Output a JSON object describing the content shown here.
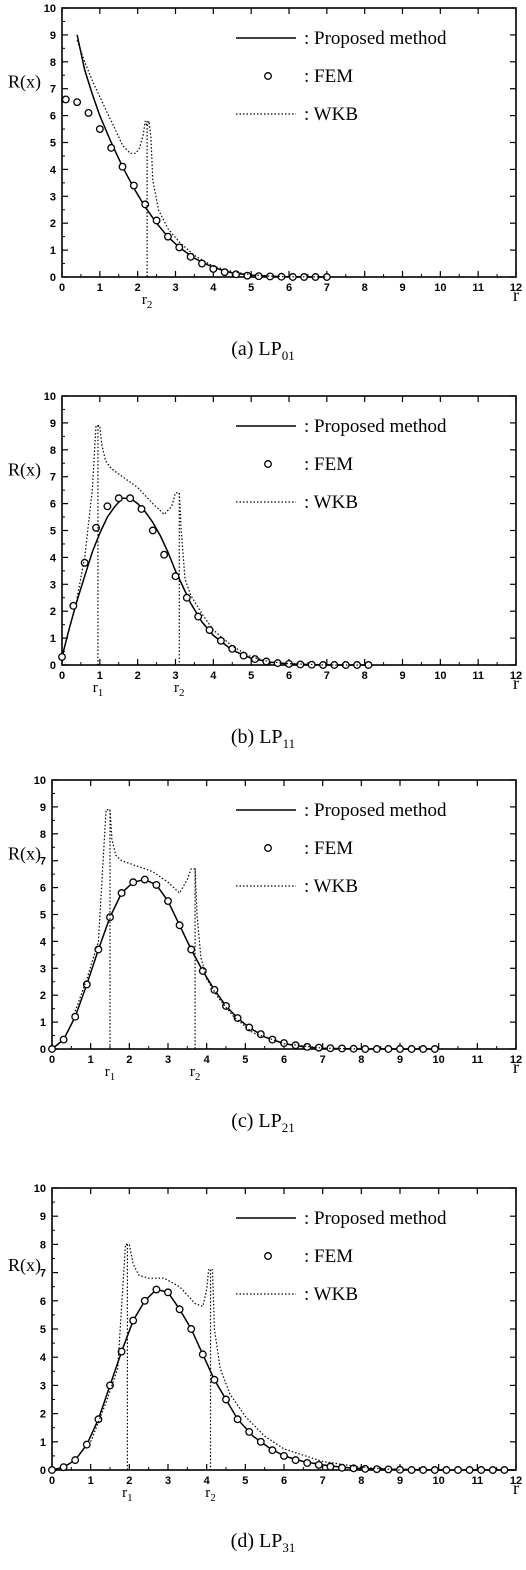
{
  "chart_data": [
    {
      "type": "line",
      "panel_caption": "(a)  LP",
      "panel_caption_sub": "01",
      "xlabel": "r",
      "ylabel": "R(x)",
      "xlim": [
        0,
        12
      ],
      "ylim": [
        0,
        10
      ],
      "xticks": [
        "0",
        "1",
        "2",
        "3",
        "4",
        "5",
        "6",
        "7",
        "8",
        "9",
        "10",
        "11",
        "12"
      ],
      "yticks": [
        "0",
        "1",
        "2",
        "3",
        "4",
        "5",
        "6",
        "7",
        "8",
        "9",
        "10"
      ],
      "legend": [
        "Proposed method",
        "FEM",
        "WKB"
      ],
      "legend_position": "top-right",
      "turning_points": [
        {
          "label": "r",
          "sub": "2",
          "x": 2.25
        }
      ],
      "series": [
        {
          "name": "Proposed method",
          "style": "solid",
          "x": [
            0.4,
            0.6,
            0.8,
            1.0,
            1.3,
            1.6,
            1.9,
            2.2,
            2.5,
            2.8,
            3.1,
            3.5,
            4.0,
            4.5,
            5.0,
            5.5,
            6.0,
            7.0
          ],
          "y": [
            9.0,
            7.7,
            6.8,
            6.0,
            5.0,
            4.1,
            3.3,
            2.6,
            2.0,
            1.5,
            1.1,
            0.7,
            0.35,
            0.15,
            0.07,
            0.03,
            0.01,
            0.0
          ]
        },
        {
          "name": "FEM",
          "style": "circle",
          "x": [
            0.1,
            0.4,
            0.7,
            1.0,
            1.3,
            1.6,
            1.9,
            2.2,
            2.5,
            2.8,
            3.1,
            3.4,
            3.7,
            4.0,
            4.3,
            4.6,
            4.9,
            5.2,
            5.5,
            5.8,
            6.1,
            6.4,
            6.7,
            7.0
          ],
          "y": [
            6.6,
            6.5,
            6.1,
            5.5,
            4.8,
            4.1,
            3.4,
            2.7,
            2.1,
            1.5,
            1.1,
            0.75,
            0.5,
            0.3,
            0.18,
            0.1,
            0.05,
            0.03,
            0.02,
            0.01,
            0.0,
            0.0,
            0.0,
            0.0
          ]
        },
        {
          "name": "WKB",
          "style": "dotted",
          "x": [
            0.4,
            0.6,
            0.8,
            1.0,
            1.2,
            1.4,
            1.6,
            1.8,
            1.95,
            2.05,
            2.15,
            2.2,
            2.25,
            2.3,
            2.35,
            2.4,
            2.55,
            2.8,
            3.1,
            3.5,
            4.0,
            4.5,
            5.0,
            5.5,
            6.0,
            7.0
          ],
          "y": [
            8.8,
            8.0,
            7.3,
            6.7,
            6.1,
            5.5,
            4.9,
            4.6,
            4.6,
            4.8,
            5.3,
            5.8,
            5.6,
            5.8,
            5.2,
            3.6,
            2.5,
            1.8,
            1.3,
            0.8,
            0.4,
            0.2,
            0.08,
            0.03,
            0.01,
            0.0
          ],
          "drop_to_zero_at": 2.25
        }
      ]
    },
    {
      "type": "line",
      "panel_caption": "(b)  LP",
      "panel_caption_sub": "11",
      "xlabel": "r",
      "ylabel": "R(x)",
      "xlim": [
        0,
        12
      ],
      "ylim": [
        0,
        10
      ],
      "xticks": [
        "0",
        "1",
        "2",
        "3",
        "4",
        "5",
        "6",
        "7",
        "8",
        "9",
        "10",
        "11",
        "12"
      ],
      "yticks": [
        "0",
        "1",
        "2",
        "3",
        "4",
        "5",
        "6",
        "7",
        "8",
        "9",
        "10"
      ],
      "legend": [
        "Proposed method",
        "FEM",
        "WKB"
      ],
      "legend_position": "top-right",
      "turning_points": [
        {
          "label": "r",
          "sub": "1",
          "x": 0.95
        },
        {
          "label": "r",
          "sub": "2",
          "x": 3.1
        }
      ],
      "series": [
        {
          "name": "Proposed method",
          "style": "solid",
          "x": [
            0.0,
            0.2,
            0.4,
            0.6,
            0.8,
            1.0,
            1.2,
            1.4,
            1.6,
            1.8,
            2.0,
            2.2,
            2.4,
            2.6,
            2.8,
            3.0,
            3.2,
            3.4,
            3.7,
            4.0,
            4.5,
            5.0,
            5.5,
            6.0,
            6.5,
            7.0,
            8.0
          ],
          "y": [
            0.3,
            1.4,
            2.4,
            3.3,
            4.2,
            4.9,
            5.5,
            5.9,
            6.2,
            6.2,
            6.0,
            5.7,
            5.3,
            4.8,
            4.2,
            3.5,
            2.9,
            2.3,
            1.6,
            1.1,
            0.55,
            0.25,
            0.1,
            0.04,
            0.02,
            0.0,
            0.0
          ]
        },
        {
          "name": "FEM",
          "style": "circle",
          "x": [
            0.0,
            0.3,
            0.6,
            0.9,
            1.2,
            1.5,
            1.8,
            2.1,
            2.4,
            2.7,
            3.0,
            3.3,
            3.6,
            3.9,
            4.2,
            4.5,
            4.8,
            5.1,
            5.4,
            5.7,
            6.0,
            6.3,
            6.6,
            6.9,
            7.2,
            7.5,
            7.8,
            8.1
          ],
          "y": [
            0.3,
            2.2,
            3.8,
            5.1,
            5.9,
            6.2,
            6.2,
            5.8,
            5.0,
            4.1,
            3.3,
            2.5,
            1.8,
            1.3,
            0.9,
            0.6,
            0.35,
            0.22,
            0.13,
            0.07,
            0.04,
            0.02,
            0.01,
            0.0,
            0.0,
            0.0,
            0.0,
            0.0
          ]
        },
        {
          "name": "WKB",
          "style": "dotted",
          "x": [
            0.4,
            0.6,
            0.8,
            0.9,
            0.95,
            1.0,
            1.05,
            1.15,
            1.3,
            1.6,
            2.0,
            2.4,
            2.7,
            2.9,
            3.0,
            3.05,
            3.1,
            3.15,
            3.25,
            3.4,
            3.7,
            4.0,
            4.5,
            5.0,
            5.5,
            6.0,
            7.0,
            8.0
          ],
          "y": [
            2.5,
            4.0,
            6.5,
            8.9,
            8.9,
            8.9,
            8.2,
            7.6,
            7.3,
            7.0,
            6.6,
            6.0,
            5.6,
            5.9,
            6.4,
            6.4,
            6.4,
            5.0,
            3.2,
            2.6,
            1.9,
            1.3,
            0.7,
            0.3,
            0.12,
            0.05,
            0.0,
            0.0
          ],
          "drop_to_zero_at": [
            0.95,
            3.1
          ]
        }
      ]
    },
    {
      "type": "line",
      "panel_caption": "(c)  LP",
      "panel_caption_sub": "21",
      "xlabel": "r",
      "ylabel": "R(x)",
      "xlim": [
        0,
        12
      ],
      "ylim": [
        0,
        10
      ],
      "xticks": [
        "0",
        "1",
        "2",
        "3",
        "4",
        "5",
        "6",
        "7",
        "8",
        "9",
        "10",
        "11",
        "12"
      ],
      "yticks": [
        "0",
        "1",
        "2",
        "3",
        "4",
        "5",
        "6",
        "7",
        "8",
        "9",
        "10"
      ],
      "legend": [
        "Proposed method",
        "FEM",
        "WKB"
      ],
      "legend_position": "top-right",
      "turning_points": [
        {
          "label": "r",
          "sub": "1",
          "x": 1.5
        },
        {
          "label": "r",
          "sub": "2",
          "x": 3.7
        }
      ],
      "series": [
        {
          "name": "Proposed method",
          "style": "solid",
          "x": [
            0.0,
            0.3,
            0.6,
            0.9,
            1.2,
            1.5,
            1.8,
            2.1,
            2.4,
            2.7,
            3.0,
            3.3,
            3.6,
            3.9,
            4.2,
            4.5,
            4.8,
            5.1,
            5.5,
            6.0,
            6.5,
            7.0,
            8.0,
            10.0
          ],
          "y": [
            0.0,
            0.35,
            1.2,
            2.4,
            3.7,
            4.9,
            5.8,
            6.2,
            6.3,
            6.1,
            5.5,
            4.6,
            3.7,
            2.9,
            2.2,
            1.6,
            1.15,
            0.8,
            0.45,
            0.2,
            0.08,
            0.03,
            0.0,
            0.0
          ]
        },
        {
          "name": "FEM",
          "style": "circle",
          "x": [
            0.0,
            0.3,
            0.6,
            0.9,
            1.2,
            1.5,
            1.8,
            2.1,
            2.4,
            2.7,
            3.0,
            3.3,
            3.6,
            3.9,
            4.2,
            4.5,
            4.8,
            5.1,
            5.4,
            5.7,
            6.0,
            6.3,
            6.6,
            6.9,
            7.2,
            7.5,
            7.8,
            8.1,
            8.4,
            8.7,
            9.0,
            9.3,
            9.6,
            9.9
          ],
          "y": [
            0.0,
            0.35,
            1.2,
            2.4,
            3.7,
            4.9,
            5.8,
            6.2,
            6.3,
            6.1,
            5.5,
            4.6,
            3.7,
            2.9,
            2.2,
            1.6,
            1.15,
            0.8,
            0.55,
            0.35,
            0.22,
            0.14,
            0.08,
            0.05,
            0.03,
            0.02,
            0.01,
            0.0,
            0.0,
            0.0,
            0.0,
            0.0,
            0.0,
            0.0
          ]
        },
        {
          "name": "WKB",
          "style": "dotted",
          "x": [
            0.6,
            0.9,
            1.2,
            1.4,
            1.45,
            1.5,
            1.55,
            1.65,
            1.8,
            2.2,
            2.6,
            3.0,
            3.3,
            3.5,
            3.6,
            3.65,
            3.7,
            3.75,
            3.85,
            4.0,
            4.3,
            4.7,
            5.2,
            6.0,
            7.0,
            8.0
          ],
          "y": [
            1.4,
            2.6,
            4.0,
            8.9,
            8.9,
            8.9,
            7.8,
            7.2,
            7.0,
            6.8,
            6.6,
            6.2,
            5.8,
            6.3,
            6.7,
            6.7,
            6.7,
            5.0,
            3.4,
            2.6,
            1.9,
            1.2,
            0.6,
            0.2,
            0.03,
            0.0
          ],
          "drop_to_zero_at": [
            1.5,
            3.7
          ]
        }
      ]
    },
    {
      "type": "line",
      "panel_caption": "(d)  LP",
      "panel_caption_sub": "31",
      "xlabel": "r",
      "ylabel": "R(x)",
      "xlim": [
        0,
        12
      ],
      "ylim": [
        0,
        10
      ],
      "xticks": [
        "0",
        "1",
        "2",
        "3",
        "4",
        "5",
        "6",
        "7",
        "8",
        "9",
        "10",
        "11",
        "12"
      ],
      "yticks": [
        "0",
        "1",
        "2",
        "3",
        "4",
        "5",
        "6",
        "7",
        "8",
        "9",
        "10"
      ],
      "legend": [
        "Proposed method",
        "FEM",
        "WKB"
      ],
      "legend_position": "top-right",
      "turning_points": [
        {
          "label": "r",
          "sub": "1",
          "x": 1.95
        },
        {
          "label": "r",
          "sub": "2",
          "x": 4.1
        }
      ],
      "series": [
        {
          "name": "Proposed method",
          "style": "solid",
          "x": [
            0.0,
            0.3,
            0.6,
            0.9,
            1.2,
            1.5,
            1.8,
            2.1,
            2.4,
            2.7,
            3.0,
            3.3,
            3.6,
            3.9,
            4.2,
            4.5,
            4.8,
            5.2,
            5.6,
            6.0,
            6.5,
            7.0,
            7.5,
            8.0,
            9.0,
            10.0,
            12.0
          ],
          "y": [
            0.0,
            0.1,
            0.35,
            0.9,
            1.8,
            3.0,
            4.2,
            5.3,
            6.0,
            6.4,
            6.3,
            5.7,
            5.0,
            4.1,
            3.2,
            2.5,
            1.8,
            1.2,
            0.8,
            0.5,
            0.3,
            0.18,
            0.1,
            0.05,
            0.02,
            0.0,
            0.0
          ]
        },
        {
          "name": "FEM",
          "style": "circle",
          "x": [
            0.0,
            0.3,
            0.6,
            0.9,
            1.2,
            1.5,
            1.8,
            2.1,
            2.4,
            2.7,
            3.0,
            3.3,
            3.6,
            3.9,
            4.2,
            4.5,
            4.8,
            5.1,
            5.4,
            5.7,
            6.0,
            6.3,
            6.6,
            6.9,
            7.2,
            7.5,
            7.8,
            8.1,
            8.4,
            8.7,
            9.0,
            9.3,
            9.6,
            9.9,
            10.2,
            10.5,
            10.8,
            11.1,
            11.4,
            11.7
          ],
          "y": [
            0.0,
            0.1,
            0.35,
            0.9,
            1.8,
            3.0,
            4.2,
            5.3,
            6.0,
            6.4,
            6.3,
            5.7,
            5.0,
            4.1,
            3.2,
            2.5,
            1.8,
            1.35,
            1.0,
            0.7,
            0.5,
            0.35,
            0.25,
            0.18,
            0.12,
            0.08,
            0.06,
            0.04,
            0.03,
            0.02,
            0.01,
            0.0,
            0.0,
            0.0,
            0.0,
            0.0,
            0.0,
            0.0,
            0.0,
            0.0
          ]
        },
        {
          "name": "WKB",
          "style": "dotted",
          "x": [
            1.0,
            1.4,
            1.7,
            1.9,
            1.95,
            2.0,
            2.1,
            2.25,
            2.5,
            2.9,
            3.3,
            3.7,
            3.9,
            4.0,
            4.05,
            4.1,
            4.15,
            4.2,
            4.35,
            4.6,
            5.0,
            5.5,
            6.0,
            7.0,
            8.0,
            9.0
          ],
          "y": [
            1.0,
            2.4,
            3.6,
            8.0,
            8.0,
            8.0,
            7.3,
            6.9,
            6.8,
            6.8,
            6.5,
            5.9,
            5.8,
            6.4,
            7.1,
            7.1,
            7.1,
            5.0,
            3.6,
            2.7,
            1.9,
            1.2,
            0.75,
            0.3,
            0.1,
            0.0
          ],
          "drop_to_zero_at": [
            1.95,
            4.1
          ]
        }
      ]
    }
  ]
}
